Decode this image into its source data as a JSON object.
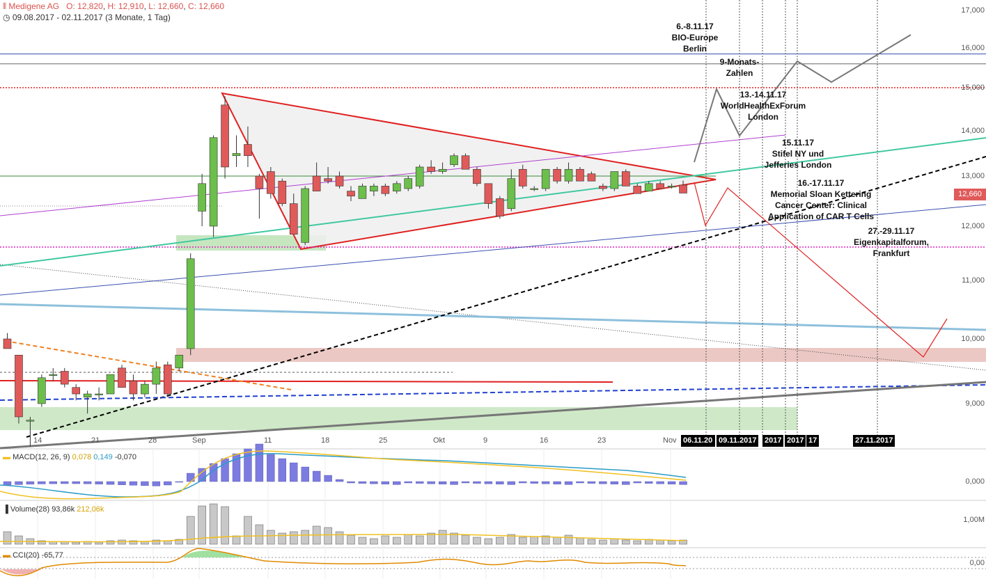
{
  "header": {
    "title": "Medigene AG",
    "open": "O: 12,820",
    "high": "H: 12,910",
    "low": "L: 12,660",
    "close": "C: 12,660",
    "range": "09.08.2017 - 02.11.2017",
    "period": "(3 Monate, 1 Tag)"
  },
  "price_tag": "12,660",
  "y_axis": [
    "17,000",
    "16,000",
    "15,000",
    "14,000",
    "13,000",
    "12,000",
    "11,000",
    "10,000",
    "9,000"
  ],
  "x_axis": [
    "14",
    "21",
    "28",
    "Sep",
    "11",
    "18",
    "25",
    "Okt",
    "9",
    "16",
    "23",
    "Nov"
  ],
  "date_boxes": [
    "06.11.20",
    "09.11.2017",
    "2017",
    "2017",
    "17",
    "27.11.2017"
  ],
  "annotations": [
    "6.-8.11.17\nBIO-Europe\nBerlin",
    "9-Monats-\nZahlen",
    "13.-14.11.17\nWorldHealthExForum\nLondon",
    "15.11.17\nStifel NY und\nJefferies London",
    "16.-17.11.17\nMemorial Sloan Kettering\nCancer Center: Clinical\nApplication of CAR T Cells",
    "27.-29.11.17\nEigenkapitalforum,\nFrankfurt"
  ],
  "macd": {
    "label": "MACD(12, 26, 9)",
    "v1": "0,078",
    "v2": "0,149",
    "v3": "-0,070",
    "axis": "0,000"
  },
  "volume": {
    "label": "Volume(28)",
    "v1": "93,86k",
    "v2": "212,06k",
    "axis": "1,00M"
  },
  "cci": {
    "label": "CCI(20)",
    "v1": "-65,77",
    "axis": "0,00"
  },
  "colors": {
    "up": "#6cbf4b",
    "down": "#e05a5a",
    "triangle": "#e02020",
    "macd_line": "#2a9bc6",
    "signal": "#f0c020",
    "hist": "#7b7be0"
  },
  "chart_data": {
    "type": "candlestick",
    "title": "Medigene AG",
    "ylim": [
      8.5,
      17.2
    ],
    "candles": [
      {
        "o": 10.0,
        "h": 10.1,
        "l": 9.85,
        "c": 9.85
      },
      {
        "o": 9.75,
        "h": 9.75,
        "l": 8.7,
        "c": 8.8
      },
      {
        "o": 8.75,
        "h": 8.8,
        "l": 8.35,
        "c": 8.75
      },
      {
        "o": 9.0,
        "h": 9.45,
        "l": 8.95,
        "c": 9.4
      },
      {
        "o": 9.45,
        "h": 9.55,
        "l": 9.35,
        "c": 9.45
      },
      {
        "o": 9.5,
        "h": 9.55,
        "l": 9.25,
        "c": 9.3
      },
      {
        "o": 9.25,
        "h": 9.3,
        "l": 9.05,
        "c": 9.15
      },
      {
        "o": 9.1,
        "h": 9.2,
        "l": 8.85,
        "c": 9.15
      },
      {
        "o": 9.15,
        "h": 9.25,
        "l": 9.05,
        "c": 9.15
      },
      {
        "o": 9.15,
        "h": 9.45,
        "l": 9.15,
        "c": 9.45
      },
      {
        "o": 9.55,
        "h": 9.6,
        "l": 9.25,
        "c": 9.25
      },
      {
        "o": 9.35,
        "h": 9.45,
        "l": 9.05,
        "c": 9.15
      },
      {
        "o": 9.15,
        "h": 9.35,
        "l": 9.1,
        "c": 9.3
      },
      {
        "o": 9.3,
        "h": 9.65,
        "l": 9.15,
        "c": 9.55
      },
      {
        "o": 9.6,
        "h": 9.65,
        "l": 9.1,
        "c": 9.15
      },
      {
        "o": 9.55,
        "h": 9.75,
        "l": 9.5,
        "c": 9.75
      },
      {
        "o": 9.85,
        "h": 11.5,
        "l": 9.75,
        "c": 11.4
      },
      {
        "o": 12.3,
        "h": 13.05,
        "l": 12.0,
        "c": 12.85
      },
      {
        "o": 12.0,
        "h": 13.9,
        "l": 11.8,
        "c": 13.85
      },
      {
        "o": 14.6,
        "h": 14.8,
        "l": 12.95,
        "c": 13.2
      },
      {
        "o": 13.45,
        "h": 13.9,
        "l": 13.2,
        "c": 13.5
      },
      {
        "o": 13.7,
        "h": 14.1,
        "l": 13.2,
        "c": 13.45
      },
      {
        "o": 13.0,
        "h": 13.05,
        "l": 12.15,
        "c": 12.75
      },
      {
        "o": 13.1,
        "h": 13.2,
        "l": 12.55,
        "c": 12.65
      },
      {
        "o": 12.9,
        "h": 12.95,
        "l": 12.4,
        "c": 12.45
      },
      {
        "o": 12.45,
        "h": 12.65,
        "l": 11.85,
        "c": 11.85
      },
      {
        "o": 11.7,
        "h": 12.8,
        "l": 11.65,
        "c": 12.75
      },
      {
        "o": 13.0,
        "h": 13.3,
        "l": 12.7,
        "c": 12.7
      },
      {
        "o": 12.95,
        "h": 13.2,
        "l": 12.85,
        "c": 12.9
      },
      {
        "o": 13.0,
        "h": 13.1,
        "l": 12.75,
        "c": 12.8
      },
      {
        "o": 12.7,
        "h": 12.8,
        "l": 12.5,
        "c": 12.6
      },
      {
        "o": 12.55,
        "h": 12.85,
        "l": 12.55,
        "c": 12.8
      },
      {
        "o": 12.7,
        "h": 12.85,
        "l": 12.6,
        "c": 12.8
      },
      {
        "o": 12.8,
        "h": 12.85,
        "l": 12.6,
        "c": 12.65
      },
      {
        "o": 12.7,
        "h": 12.9,
        "l": 12.65,
        "c": 12.85
      },
      {
        "o": 12.75,
        "h": 13.0,
        "l": 12.7,
        "c": 12.95
      },
      {
        "o": 12.8,
        "h": 13.25,
        "l": 12.75,
        "c": 13.2
      },
      {
        "o": 13.2,
        "h": 13.35,
        "l": 13.05,
        "c": 13.1
      },
      {
        "o": 13.1,
        "h": 13.3,
        "l": 13.05,
        "c": 13.15
      },
      {
        "o": 13.25,
        "h": 13.5,
        "l": 13.2,
        "c": 13.45
      },
      {
        "o": 13.45,
        "h": 13.5,
        "l": 13.15,
        "c": 13.15
      },
      {
        "o": 13.15,
        "h": 13.2,
        "l": 12.8,
        "c": 12.85
      },
      {
        "o": 12.85,
        "h": 12.85,
        "l": 12.35,
        "c": 12.45
      },
      {
        "o": 12.55,
        "h": 12.6,
        "l": 12.15,
        "c": 12.2
      },
      {
        "o": 12.35,
        "h": 13.15,
        "l": 12.3,
        "c": 12.95
      },
      {
        "o": 13.15,
        "h": 13.25,
        "l": 12.75,
        "c": 12.8
      },
      {
        "o": 12.75,
        "h": 12.8,
        "l": 12.7,
        "c": 12.75
      },
      {
        "o": 12.75,
        "h": 13.15,
        "l": 12.7,
        "c": 13.15
      },
      {
        "o": 13.15,
        "h": 13.2,
        "l": 12.85,
        "c": 12.9
      },
      {
        "o": 12.9,
        "h": 13.3,
        "l": 12.85,
        "c": 13.15
      },
      {
        "o": 13.15,
        "h": 13.2,
        "l": 12.9,
        "c": 12.9
      },
      {
        "o": 13.05,
        "h": 13.1,
        "l": 12.9,
        "c": 12.9
      },
      {
        "o": 12.8,
        "h": 12.85,
        "l": 12.7,
        "c": 12.75
      },
      {
        "o": 12.75,
        "h": 13.1,
        "l": 12.7,
        "c": 13.1
      },
      {
        "o": 13.1,
        "h": 13.15,
        "l": 12.8,
        "c": 12.8
      },
      {
        "o": 12.8,
        "h": 12.85,
        "l": 12.65,
        "c": 12.65
      },
      {
        "o": 12.7,
        "h": 12.9,
        "l": 12.7,
        "c": 12.85
      },
      {
        "o": 12.85,
        "h": 12.9,
        "l": 12.75,
        "c": 12.75
      },
      {
        "o": 12.8,
        "h": 12.85,
        "l": 12.75,
        "c": 12.8
      },
      {
        "o": 12.82,
        "h": 12.91,
        "l": 12.66,
        "c": 12.66
      }
    ],
    "horizontal_levels": [
      15.85,
      15.6,
      15.0,
      13.0,
      11.6,
      12.5
    ],
    "forecast_path_grey": [
      [
        13.3,
        0
      ],
      [
        15.0,
        1
      ],
      [
        13.9,
        2
      ],
      [
        15.6,
        3
      ],
      [
        15.1,
        4
      ],
      [
        16.25,
        5
      ]
    ],
    "forecast_path_red": [
      [
        12.0,
        0
      ],
      [
        12.75,
        1
      ],
      [
        9.65,
        2
      ],
      [
        10.25,
        3
      ]
    ]
  }
}
